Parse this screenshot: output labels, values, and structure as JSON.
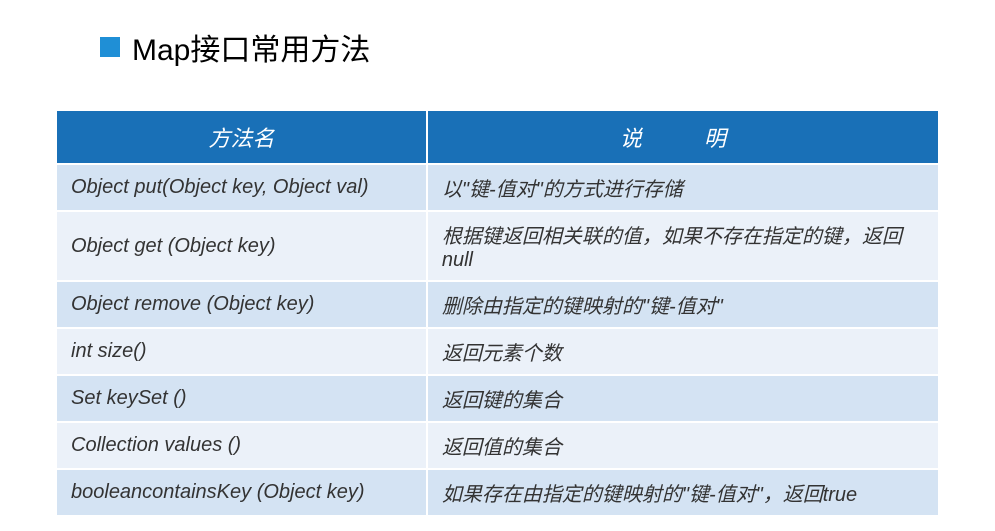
{
  "title": "Map接口常用方法",
  "table": {
    "headers": {
      "method": "方法名",
      "description": "说　明"
    },
    "rows": [
      {
        "method": "Object put(Object key, Object val)",
        "description": "以\"键-值对\"的方式进行存储"
      },
      {
        "method": "Object get (Object key)",
        "description": "根据键返回相关联的值，如果不存在指定的键，返回null"
      },
      {
        "method": "Object remove (Object key)",
        "description": "删除由指定的键映射的\"键-值对\""
      },
      {
        "method": "int size()",
        "description": "返回元素个数"
      },
      {
        "method": "Set keySet ()",
        "description": "返回键的集合"
      },
      {
        "method": "Collection values ()",
        "description": "返回值的集合"
      },
      {
        "method": "booleancontainsKey (Object key)",
        "description": "如果存在由指定的键映射的\"键-值对\"，返回true"
      }
    ]
  },
  "colors": {
    "bullet": "#1f8fd6",
    "header_bg": "#1970b7",
    "header_text": "#ffffff",
    "row_odd_bg": "#d4e3f3",
    "row_even_bg": "#ebf1f9",
    "border": "#ffffff",
    "title_text": "#000000",
    "cell_text": "#333333"
  }
}
